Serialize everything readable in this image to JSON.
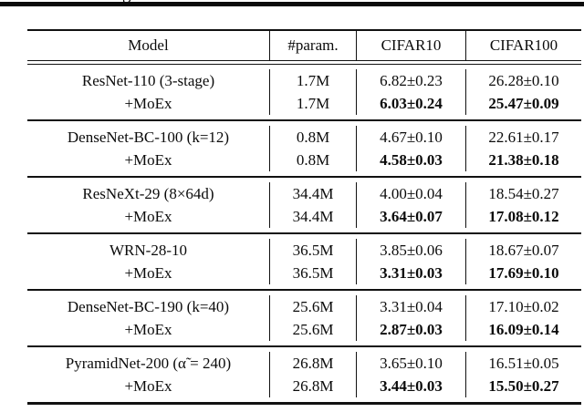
{
  "page": {
    "background": "#ffffff",
    "ink": "#0b0b0b",
    "clipped_caption_fragment": "g"
  },
  "table": {
    "columns": [
      "Model",
      "#param.",
      "CIFAR10",
      "CIFAR100"
    ],
    "groups": [
      {
        "rows": [
          {
            "cells": [
              "ResNet-110 (3-stage)",
              "1.7M",
              "6.82±0.23",
              "26.28±0.10"
            ],
            "bold_results": false
          },
          {
            "cells": [
              "+MoEx",
              "1.7M",
              "6.03±0.24",
              "25.47±0.09"
            ],
            "bold_results": true
          }
        ]
      },
      {
        "rows": [
          {
            "cells": [
              "DenseNet-BC-100 (k=12)",
              "0.8M",
              "4.67±0.10",
              "22.61±0.17"
            ],
            "bold_results": false
          },
          {
            "cells": [
              "+MoEx",
              "0.8M",
              "4.58±0.03",
              "21.38±0.18"
            ],
            "bold_results": true
          }
        ]
      },
      {
        "rows": [
          {
            "cells": [
              "ResNeXt-29 (8×64d)",
              "34.4M",
              "4.00±0.04",
              "18.54±0.27"
            ],
            "bold_results": false
          },
          {
            "cells": [
              "+MoEx",
              "34.4M",
              "3.64±0.07",
              "17.08±0.12"
            ],
            "bold_results": true
          }
        ]
      },
      {
        "rows": [
          {
            "cells": [
              "WRN-28-10",
              "36.5M",
              "3.85±0.06",
              "18.67±0.07"
            ],
            "bold_results": false
          },
          {
            "cells": [
              "+MoEx",
              "36.5M",
              "3.31±0.03",
              "17.69±0.10"
            ],
            "bold_results": true
          }
        ]
      },
      {
        "rows": [
          {
            "cells": [
              "DenseNet-BC-190 (k=40)",
              "25.6M",
              "3.31±0.04",
              "17.10±0.02"
            ],
            "bold_results": false
          },
          {
            "cells": [
              "+MoEx",
              "25.6M",
              "2.87±0.03",
              "16.09±0.14"
            ],
            "bold_results": true
          }
        ]
      },
      {
        "rows": [
          {
            "cells": [
              "PyramidNet-200 (α̃ = 240)",
              "26.8M",
              "3.65±0.10",
              "16.51±0.05"
            ],
            "bold_results": false
          },
          {
            "cells": [
              "+MoEx",
              "26.8M",
              "3.44±0.03",
              "15.50±0.27"
            ],
            "bold_results": true
          }
        ]
      }
    ]
  }
}
